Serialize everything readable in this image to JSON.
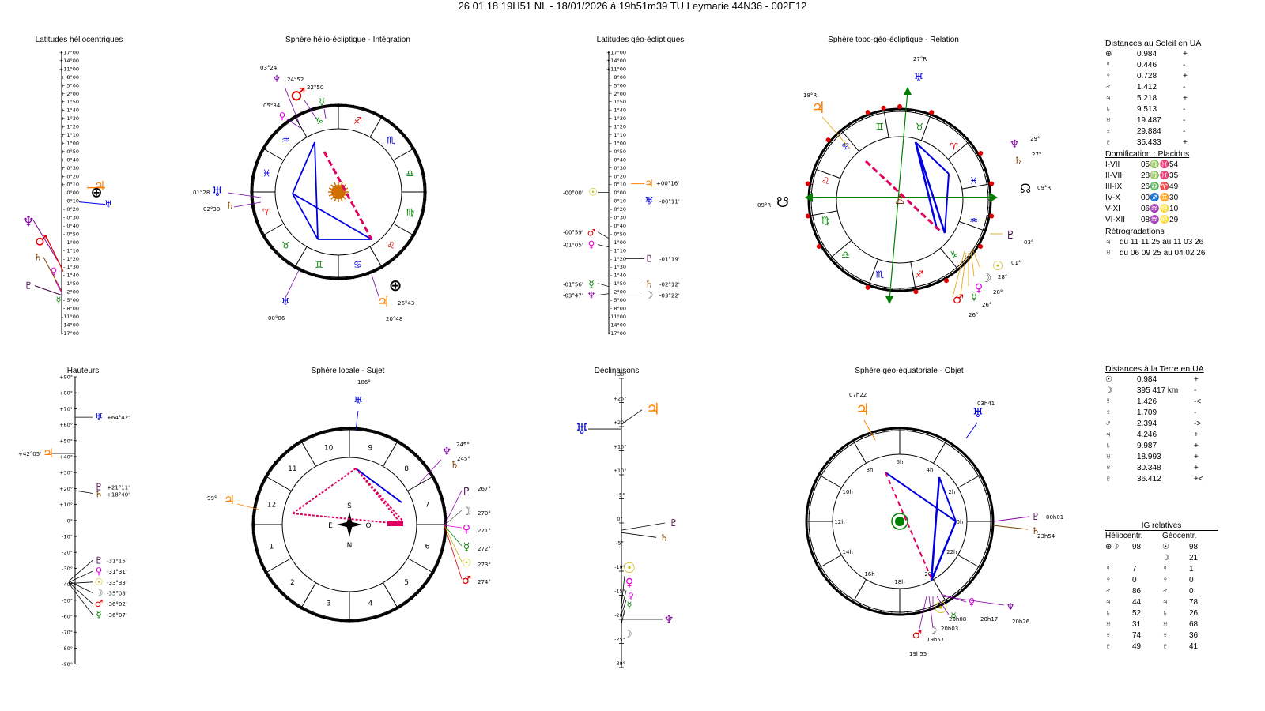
{
  "header": {
    "title": "26 01 18 19H51 NL   -  18/01/2026 à 19h51m39 TU  Leymarie  44N36 - 002E12"
  },
  "panels": {
    "helio_lat_title": "Latitudes héliocentriques",
    "helio_sphere_title": "Sphère hélio-écliptique - Intégration",
    "geo_lat_title": "Latitudes géo-écliptiques",
    "topo_sphere_title": "Sphère topo-géo-écliptique - Relation",
    "heights_title": "Hauteurs",
    "local_sphere_title": "Sphère locale - Sujet",
    "decl_title": "Déclinaisons",
    "equat_sphere_title": "Sphère géo-équatoriale - Objet"
  },
  "lat_scale": [
    "+17°00",
    "+14°00",
    "+11°00",
    "+ 8°00",
    "+ 5°00",
    "+ 2°00",
    "+ 1°50",
    "+ 1°40",
    "+ 1°30",
    "+ 1°20",
    "+ 1°10",
    "+ 1°00",
    "+ 0°50",
    "+ 0°40",
    "+ 0°30",
    "+ 0°20",
    "+ 0°10",
    "0°00",
    "- 0°10",
    "- 0°20",
    "- 0°30",
    "- 0°40",
    "- 0°50",
    "- 1°00",
    "- 1°10",
    "- 1°20",
    "- 1°30",
    "- 1°40",
    "- 1°50",
    "- 2°00",
    "- 5°00",
    "- 8°00",
    "-11°00",
    "-14°00",
    "-17°00"
  ],
  "geo_lat_labels": {
    "jupiter": "+00°16'",
    "sun": "-00°00'",
    "uranus": "-00°11'",
    "mars": "-00°59'",
    "venus": "-01°05'",
    "pluto": "-01°19'",
    "mercury": "-01°56'",
    "saturn": "-02°12'",
    "neptune": "-03°47'",
    "moon": "-03°22'"
  },
  "helio_sphere_labels": {
    "neptune_top": "03°24",
    "mars_top": "24°52",
    "mercury_top": "22°50",
    "venus_top": "05°34",
    "uranus_left": "01°28",
    "saturn_left": "02°30",
    "uranus_bottom": "00°06",
    "jupiter_bottom": "26°43",
    "earth_bottom": "20°48"
  },
  "topo_sphere_labels": {
    "uranus_top": "27°R",
    "jupiter": "18°R",
    "pluto": "29°",
    "saturn": "27°",
    "node_right": "09°R",
    "node_left": "09°R",
    "neptune": "03°",
    "sun": "01°",
    "moon": "28°",
    "venus": "28°",
    "mercury": "26°",
    "mars": "26°"
  },
  "heights": {
    "scale": [
      "+90°",
      "+80°",
      "+70°",
      "+60°",
      "+50°",
      "+40°",
      "+30°",
      "+20°",
      "+10°",
      "0°",
      "-10°",
      "-20°",
      "-30°",
      "-40°",
      "-50°",
      "-60°",
      "-70°",
      "-80°",
      "-90°"
    ],
    "uranus": "+64°42'",
    "jupiter": "+42°05'",
    "pluto": "+21°11'",
    "saturn": "+18°40'",
    "neptune": "-31°15'",
    "venus": "-31°31'",
    "sun": "-33°33'",
    "moon": "-35°08'",
    "mars": "-36°02'",
    "mercury": "-36°07'"
  },
  "local_sphere_labels": {
    "uranus": "186°",
    "pluto": "245°",
    "saturn": "245°",
    "jupiter": "99°",
    "neptune": "267°",
    "moon": "270°",
    "venus": "271°",
    "mercury": "272°",
    "sun": "273°",
    "mars": "274°",
    "south": "S",
    "east": "E",
    "west": "O",
    "north": "N"
  },
  "decl_scale": [
    "+30°",
    "+25°",
    "+20°",
    "+15°",
    "+10°",
    "+5°",
    "0°",
    "-5°",
    "-10°",
    "-15°",
    "-20°",
    "-25°",
    "-30°"
  ],
  "equat_sphere_labels": {
    "jupiter": "07h22",
    "uranus": "03h41",
    "pluto": "00h01",
    "saturn": "23h54",
    "mercury": "20h08",
    "venus": "20h17",
    "neptune": "20h26",
    "sun": "20h03",
    "mars": "19h57",
    "moon": "19h55",
    "hours": [
      "0h",
      "2h",
      "4h",
      "6h",
      "8h",
      "10h",
      "12h",
      "14h",
      "16h",
      "18h",
      "20h",
      "22h"
    ]
  },
  "sun_distances": {
    "title": "Distances au Soleil en UA",
    "rows": [
      {
        "sym": "⊕",
        "val": "0.984",
        "sign": "+"
      },
      {
        "sym": "☿",
        "val": "0.446",
        "sign": "-"
      },
      {
        "sym": "♀",
        "val": "0.728",
        "sign": "+"
      },
      {
        "sym": "♂",
        "val": "1.412",
        "sign": "-"
      },
      {
        "sym": "♃",
        "val": "5.218",
        "sign": "+"
      },
      {
        "sym": "♄",
        "val": "9.513",
        "sign": "-"
      },
      {
        "sym": "♅",
        "val": "19.487",
        "sign": "-"
      },
      {
        "sym": "♆",
        "val": "29.884",
        "sign": "-"
      },
      {
        "sym": "♇",
        "val": "35.433",
        "sign": "+"
      }
    ]
  },
  "domification": {
    "title": "Domification : Placidus",
    "rows": [
      {
        "h": "I-VII",
        "v": "05♍♓54"
      },
      {
        "h": "II-VIII",
        "v": "28♍♓35"
      },
      {
        "h": "III-IX",
        "v": "26♎♈49"
      },
      {
        "h": "IV-X",
        "v": "00♐♊30"
      },
      {
        "h": "V-XI",
        "v": "06♒♌10"
      },
      {
        "h": "VI-XII",
        "v": "08♒♌29"
      }
    ]
  },
  "retro": {
    "title": "Rétrogradations",
    "rows": [
      {
        "sym": "♃",
        "v": "du 11 11 25 au 11 03 26"
      },
      {
        "sym": "♅",
        "v": "du 06 09 25 au 04 02 26"
      }
    ]
  },
  "earth_distances": {
    "title": "Distances à la Terre en UA",
    "rows": [
      {
        "sym": "☉",
        "val": "0.984",
        "sign": "+"
      },
      {
        "sym": "☽",
        "val": "395 417 km",
        "sign": "-"
      },
      {
        "sym": "☿",
        "val": "1.426",
        "sign": "-<"
      },
      {
        "sym": "♀",
        "val": "1.709",
        "sign": "-"
      },
      {
        "sym": "♂",
        "val": "2.394",
        "sign": "->"
      },
      {
        "sym": "♃",
        "val": "4.246",
        "sign": "+"
      },
      {
        "sym": "♄",
        "val": "9.987",
        "sign": "+"
      },
      {
        "sym": "♅",
        "val": "18.993",
        "sign": "+"
      },
      {
        "sym": "♆",
        "val": "30.348",
        "sign": "+"
      },
      {
        "sym": "♇",
        "val": "36.412",
        "sign": "+<"
      }
    ]
  },
  "ig": {
    "title": "IG relatives",
    "col1": "Héliocentr.",
    "col2": "Géocentr.",
    "rows": [
      {
        "s1": "⊕☽",
        "v1": "98",
        "s2": "☉",
        "v2": "98"
      },
      {
        "s1": "",
        "v1": "",
        "s2": "☽",
        "v2": "21"
      },
      {
        "s1": "☿",
        "v1": "7",
        "s2": "☿",
        "v2": "1"
      },
      {
        "s1": "♀",
        "v1": "0",
        "s2": "♀",
        "v2": "0"
      },
      {
        "s1": "♂",
        "v1": "86",
        "s2": "♂",
        "v2": "0"
      },
      {
        "s1": "♃",
        "v1": "44",
        "s2": "♃",
        "v2": "78"
      },
      {
        "s1": "♄",
        "v1": "52",
        "s2": "♄",
        "v2": "26"
      },
      {
        "s1": "♅",
        "v1": "31",
        "s2": "♅",
        "v2": "68"
      },
      {
        "s1": "♆",
        "v1": "74",
        "s2": "♆",
        "v2": "36"
      },
      {
        "s1": "♇",
        "v1": "49",
        "s2": "♇",
        "v2": "41"
      }
    ]
  },
  "colors": {
    "sun": "#c8b400",
    "moon": "#555555",
    "mercury": "#008000",
    "venus": "#e000e0",
    "mars": "#e00000",
    "jupiter": "#ff8000",
    "saturn": "#804000",
    "uranus": "#0000e0",
    "neptune": "#8000a0",
    "pluto": "#400040",
    "aspect_blue": "#0000e0",
    "aspect_red": "#e00060"
  }
}
